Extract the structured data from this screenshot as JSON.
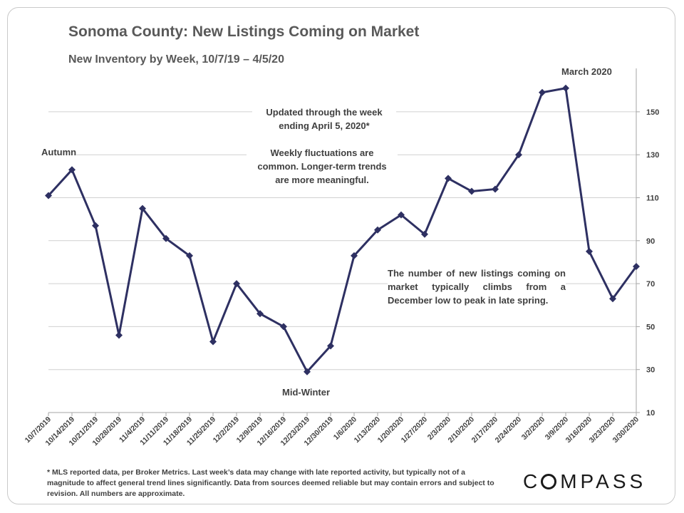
{
  "chart_data": {
    "type": "line",
    "title": "Sonoma County: New Listings Coming on Market",
    "subtitle": "New Inventory by Week, 10/7/19 – 4/5/20",
    "xlabel": "",
    "ylabel": "",
    "categories": [
      "10/7/2019",
      "10/14/2019",
      "10/21/2019",
      "10/28/2019",
      "11/4/2019",
      "11/11/2019",
      "11/18/2019",
      "11/25/2019",
      "12/2/2019",
      "12/9/2019",
      "12/16/2019",
      "12/23/2019",
      "12/30/2019",
      "1/6/2020",
      "1/13/2020",
      "1/20/2020",
      "1/27/2020",
      "2/3/2020",
      "2/10/2020",
      "2/17/2020",
      "2/24/2020",
      "3/2/2020",
      "3/9/2020",
      "3/16/2020",
      "3/23/2020",
      "3/30/2020"
    ],
    "series": [
      {
        "name": "",
        "color": "#2e3062",
        "values": [
          111,
          123,
          97,
          46,
          105,
          91,
          83,
          43,
          70,
          56,
          50,
          29,
          41,
          83,
          95,
          102,
          93,
          119,
          113,
          114,
          130,
          159,
          161,
          85,
          63,
          78
        ]
      }
    ],
    "yticks": [
      10,
      30,
      50,
      70,
      90,
      110,
      130,
      150
    ],
    "ylim": [
      10,
      165
    ],
    "y_axis_side": "right",
    "grid": true
  },
  "annotations": {
    "autumn": "Autumn",
    "mid_winter": "Mid-Winter",
    "march": "March 2020",
    "updated_line1": "Updated through the week",
    "updated_line2": "ending April 5, 2020*",
    "weekly_line1": "Weekly fluctuations are",
    "weekly_line2": "common. Longer-term trends",
    "weekly_line3": "are more meaningful.",
    "typical": "The number of new listings coming on market typically climbs from a December low to peak in late spring."
  },
  "footnote": "* MLS reported data, per Broker Metrics. Last week’s data may change with late reported activity, but typically not of a magnitude to affect general trend lines significantly. Data from sources deemed reliable but may contain errors and subject to revision. All numbers are approximate.",
  "logo": {
    "text_after_c": "MPASS",
    "text_before": "C"
  }
}
